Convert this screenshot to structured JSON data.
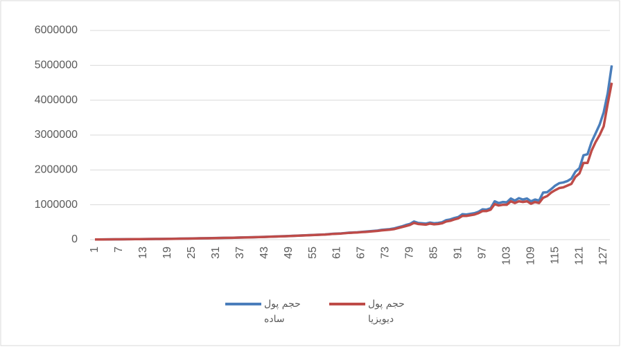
{
  "chart_data": {
    "type": "line",
    "categories": [
      "1",
      null,
      null,
      null,
      null,
      null,
      "7",
      null,
      null,
      null,
      null,
      null,
      "13",
      null,
      null,
      null,
      null,
      null,
      "19",
      null,
      null,
      null,
      null,
      null,
      "25",
      null,
      null,
      null,
      null,
      null,
      "31",
      null,
      null,
      null,
      null,
      null,
      "37",
      null,
      null,
      null,
      null,
      null,
      "43",
      null,
      null,
      null,
      null,
      null,
      "49",
      null,
      null,
      null,
      null,
      null,
      "55",
      null,
      null,
      null,
      null,
      null,
      "61",
      null,
      null,
      null,
      null,
      null,
      "67",
      null,
      null,
      null,
      null,
      null,
      "73",
      null,
      null,
      null,
      null,
      null,
      "79",
      null,
      null,
      null,
      null,
      null,
      "85",
      null,
      null,
      null,
      null,
      null,
      "91",
      null,
      null,
      null,
      null,
      null,
      "97",
      null,
      null,
      null,
      null,
      null,
      "103",
      null,
      null,
      null,
      null,
      null,
      "109",
      null,
      null,
      null,
      null,
      null,
      "115",
      null,
      null,
      null,
      null,
      null,
      "121",
      null,
      null,
      null,
      null,
      null,
      "127",
      null,
      null
    ],
    "series": [
      {
        "name": "حجم پول ساده",
        "color": "#4a7ebb",
        "values": [
          5000,
          6000,
          7000,
          8000,
          9000,
          10000,
          11000,
          12000,
          13000,
          14000,
          15000,
          16000,
          17000,
          18000,
          19000,
          20000,
          21000,
          22000,
          23000,
          25000,
          27000,
          29000,
          31000,
          33000,
          35000,
          37000,
          39000,
          41000,
          43000,
          45000,
          47000,
          49000,
          51000,
          53000,
          55000,
          58000,
          61000,
          64000,
          67000,
          70000,
          73000,
          76000,
          80000,
          84000,
          88000,
          92000,
          96000,
          100000,
          105000,
          110000,
          115000,
          120000,
          125000,
          130000,
          135000,
          140000,
          145000,
          150000,
          160000,
          170000,
          175000,
          180000,
          190000,
          200000,
          205000,
          210000,
          220000,
          230000,
          240000,
          250000,
          260000,
          280000,
          290000,
          300000,
          320000,
          350000,
          380000,
          420000,
          450000,
          520000,
          480000,
          470000,
          460000,
          490000,
          470000,
          480000,
          500000,
          560000,
          580000,
          620000,
          650000,
          730000,
          720000,
          740000,
          760000,
          800000,
          870000,
          860000,
          900000,
          1100000,
          1050000,
          1080000,
          1070000,
          1180000,
          1120000,
          1190000,
          1150000,
          1180000,
          1100000,
          1150000,
          1120000,
          1350000,
          1360000,
          1450000,
          1550000,
          1620000,
          1640000,
          1680000,
          1750000,
          1950000,
          2050000,
          2420000,
          2450000,
          2800000,
          3050000,
          3300000,
          3650000,
          4200000,
          5000000
        ]
      },
      {
        "name": "حجم پول دیویزیا",
        "color": "#be4b48",
        "values": [
          4000,
          5000,
          6000,
          7000,
          8000,
          9000,
          10000,
          11000,
          12000,
          13000,
          14000,
          15000,
          16000,
          17000,
          18000,
          19000,
          20000,
          21000,
          22000,
          23000,
          25000,
          27000,
          29000,
          31000,
          33000,
          35000,
          37000,
          39000,
          41000,
          43000,
          45000,
          47000,
          49000,
          51000,
          53000,
          56000,
          59000,
          62000,
          65000,
          68000,
          71000,
          74000,
          78000,
          82000,
          86000,
          90000,
          94000,
          98000,
          102000,
          107000,
          112000,
          117000,
          122000,
          127000,
          132000,
          137000,
          142000,
          147000,
          155000,
          165000,
          170000,
          175000,
          185000,
          195000,
          200000,
          205000,
          215000,
          220000,
          230000,
          240000,
          250000,
          265000,
          275000,
          285000,
          300000,
          330000,
          360000,
          390000,
          420000,
          480000,
          450000,
          440000,
          430000,
          460000,
          440000,
          450000,
          470000,
          520000,
          540000,
          580000,
          610000,
          680000,
          680000,
          700000,
          720000,
          760000,
          820000,
          820000,
          860000,
          1020000,
          980000,
          1000000,
          1000000,
          1100000,
          1050000,
          1100000,
          1080000,
          1100000,
          1030000,
          1080000,
          1050000,
          1200000,
          1250000,
          1350000,
          1420000,
          1480000,
          1500000,
          1550000,
          1600000,
          1800000,
          1900000,
          2200000,
          2200000,
          2550000,
          2800000,
          3000000,
          3250000,
          3900000,
          4500000
        ]
      }
    ],
    "ylim": [
      0,
      6000000
    ],
    "yticks": [
      0,
      1000000,
      2000000,
      3000000,
      4000000,
      5000000,
      6000000
    ],
    "grid": true,
    "legend": "bottom"
  }
}
